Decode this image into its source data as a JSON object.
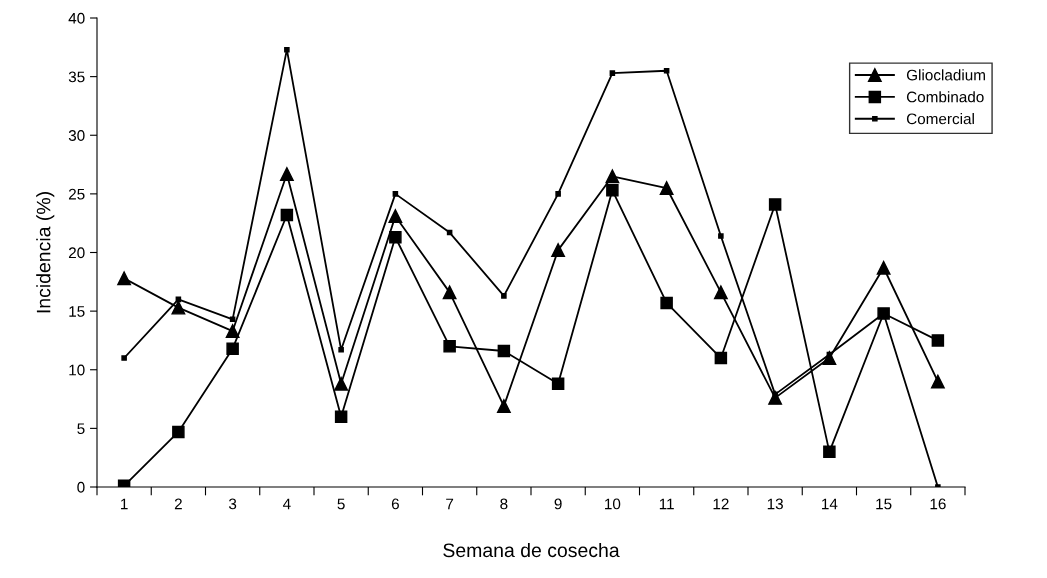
{
  "chart_data": {
    "type": "line",
    "xlabel": "Semana de cosecha",
    "ylabel": "Incidencia (%)",
    "categories": [
      "1",
      "2",
      "3",
      "4",
      "5",
      "6",
      "7",
      "8",
      "9",
      "10",
      "11",
      "12",
      "13",
      "14",
      "15",
      "16"
    ],
    "ylim": [
      0,
      40
    ],
    "yticks": [
      0,
      5,
      10,
      15,
      20,
      25,
      30,
      35,
      40
    ],
    "grid": false,
    "legend": "top right",
    "series": [
      {
        "name": "Gliocladium",
        "color": "#000000",
        "marker": "triangle",
        "values": [
          17.8,
          15.3,
          13.3,
          26.7,
          8.8,
          23.1,
          16.6,
          6.9,
          20.2,
          26.5,
          25.5,
          16.6,
          7.6,
          11.0,
          18.7,
          9.0
        ]
      },
      {
        "name": "Combinado",
        "color": "#000000",
        "marker": "square",
        "values": [
          0.1,
          4.7,
          11.8,
          23.2,
          6.0,
          21.3,
          12.0,
          11.6,
          8.8,
          25.3,
          15.7,
          11.0,
          24.1,
          3.0,
          14.8,
          12.5
        ]
      },
      {
        "name": "Comercial",
        "color": "#000000",
        "marker": "square",
        "values": [
          11.0,
          16.0,
          14.3,
          37.3,
          11.7,
          25.0,
          21.7,
          16.3,
          25.0,
          35.3,
          35.5,
          21.4,
          7.9,
          11.3,
          14.8,
          0.0
        ]
      }
    ]
  }
}
